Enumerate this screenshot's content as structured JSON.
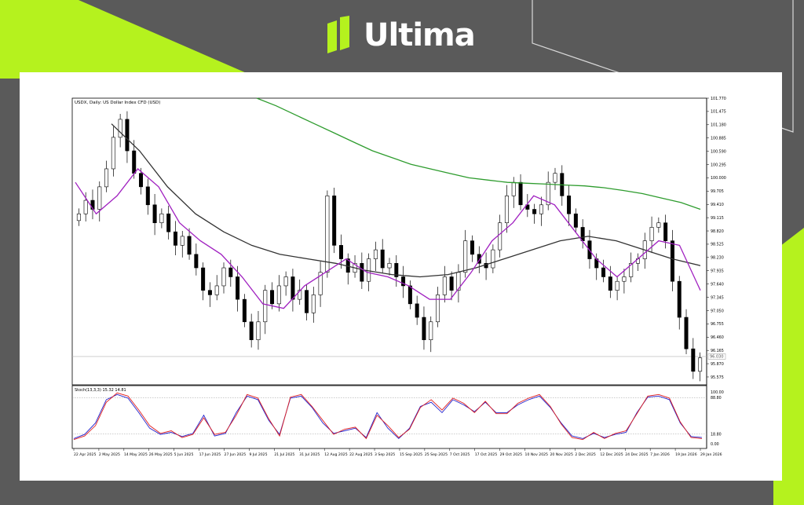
{
  "brand": {
    "name": "Ultima",
    "accent_color": "#b5f21e",
    "background_color": "#5a5a5a"
  },
  "chart_data": {
    "type": "candlestick",
    "title": "USDX, Daily: US Dollar Index CFD (USD)",
    "grid": false,
    "price_axis": {
      "ticks": [
        "101.770",
        "101.475",
        "101.180",
        "100.885",
        "100.590",
        "100.295",
        "100.000",
        "99.705",
        "99.410",
        "99.115",
        "98.820",
        "98.525",
        "98.230",
        "97.935",
        "97.640",
        "97.345",
        "97.050",
        "96.755",
        "96.460",
        "96.165",
        "95.870",
        "95.575"
      ],
      "ylim": [
        95.4,
        101.77
      ],
      "current_price": "96.030",
      "current_price_level": 96.03
    },
    "date_axis": {
      "labels": [
        "22 Apr 2025",
        "2 May 2025",
        "14 May 2025",
        "26 May 2025",
        "5 Jun 2025",
        "17 Jun 2025",
        "27 Jun 2025",
        "9 Jul 2025",
        "21 Jul 2025",
        "31 Jul 2025",
        "12 Aug 2025",
        "22 Aug 2025",
        "3 Sep 2025",
        "15 Sep 2025",
        "25 Sep 2025",
        "7 Oct 2025",
        "17 Oct 2025",
        "29 Oct 2025",
        "10 Nov 2025",
        "20 Nov 2025",
        "2 Dec 2025",
        "12 Dec 2025",
        "24 Dec 2025",
        "7 Jan 2026",
        "19 Jan 2026",
        "29 Jan 2026"
      ]
    },
    "price_series": [
      {
        "name": "close",
        "color": "#000000",
        "values": [
          99.2,
          99.5,
          99.3,
          99.8,
          100.2,
          100.9,
          101.3,
          100.6,
          100.1,
          99.8,
          99.4,
          99.0,
          99.2,
          98.8,
          98.5,
          98.7,
          98.3,
          98.0,
          97.5,
          97.4,
          97.6,
          98.0,
          97.8,
          97.3,
          96.8,
          96.4,
          96.8,
          97.5,
          97.2,
          97.6,
          97.8,
          97.3,
          97.5,
          97.0,
          97.4,
          97.9,
          99.6,
          98.5,
          98.2,
          97.9,
          98.1,
          97.7,
          98.2,
          98.4,
          98.0,
          98.1,
          97.8,
          97.6,
          97.2,
          96.9,
          96.4,
          96.8,
          97.4,
          97.8,
          97.5,
          97.9,
          98.6,
          98.3,
          98.1,
          98.0,
          98.4,
          99.0,
          99.6,
          99.9,
          99.4,
          99.3,
          99.2,
          99.4,
          99.9,
          100.1,
          99.6,
          99.2,
          98.9,
          98.6,
          98.2,
          98.0,
          97.8,
          97.5,
          97.7,
          97.8,
          98.1,
          98.2,
          98.6,
          98.9,
          99.0,
          98.6,
          97.7,
          96.9,
          96.2,
          95.7,
          96.0
        ]
      },
      {
        "name": "MA slow",
        "color": "#2e9c2e",
        "values": [
          101.77,
          101.6,
          101.4,
          101.2,
          101.0,
          100.8,
          100.6,
          100.45,
          100.3,
          100.2,
          100.1,
          100.0,
          99.95,
          99.9,
          99.88,
          99.86,
          99.84,
          99.82,
          99.78,
          99.72,
          99.65,
          99.55,
          99.45,
          99.3
        ]
      },
      {
        "name": "MA medium",
        "color": "#333333",
        "values": [
          101.2,
          100.6,
          99.8,
          99.2,
          98.8,
          98.5,
          98.3,
          98.2,
          98.1,
          97.95,
          97.85,
          97.8,
          97.85,
          98.0,
          98.2,
          98.4,
          98.6,
          98.7,
          98.6,
          98.4,
          98.2,
          98.05
        ]
      },
      {
        "name": "MA fast",
        "color": "#a020c0",
        "values": [
          99.9,
          99.2,
          99.6,
          100.2,
          99.8,
          99.0,
          98.6,
          98.3,
          97.8,
          97.2,
          97.1,
          97.6,
          97.9,
          98.2,
          97.9,
          97.8,
          97.6,
          97.3,
          97.3,
          97.9,
          98.6,
          99.0,
          99.6,
          99.4,
          98.8,
          98.2,
          97.8,
          98.2,
          98.6,
          98.5,
          97.5
        ]
      }
    ],
    "stochastic": {
      "label": "Stoch(13,3,3) 15.32 14.81",
      "levels": [
        "100.00",
        "88.80",
        "18.80",
        "0.00"
      ],
      "ylim": [
        0,
        100
      ],
      "series": [
        {
          "name": "main",
          "color": "#2222cc",
          "values": [
            10,
            18,
            40,
            85,
            95,
            88,
            60,
            30,
            18,
            22,
            14,
            20,
            55,
            15,
            20,
            60,
            92,
            85,
            45,
            18,
            88,
            92,
            70,
            40,
            20,
            25,
            30,
            12,
            60,
            30,
            10,
            30,
            72,
            80,
            60,
            85,
            75,
            62,
            80,
            60,
            60,
            75,
            85,
            92,
            70,
            40,
            15,
            10,
            20,
            12,
            18,
            22,
            60,
            90,
            92,
            85,
            40,
            14,
            12
          ]
        },
        {
          "name": "signal",
          "color": "#e02020",
          "values": [
            8,
            15,
            35,
            80,
            98,
            92,
            65,
            35,
            20,
            25,
            12,
            18,
            50,
            18,
            22,
            55,
            95,
            88,
            48,
            15,
            90,
            95,
            72,
            45,
            18,
            28,
            32,
            10,
            55,
            35,
            12,
            28,
            70,
            85,
            65,
            88,
            78,
            60,
            82,
            58,
            58,
            78,
            88,
            95,
            72,
            38,
            12,
            8,
            22,
            10,
            20,
            25,
            58,
            92,
            95,
            88,
            42,
            12,
            10
          ]
        }
      ]
    }
  }
}
